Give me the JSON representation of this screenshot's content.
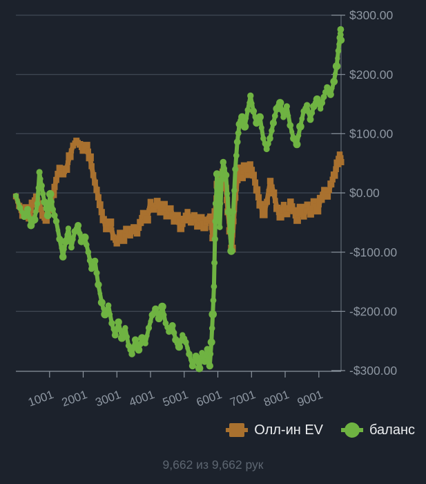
{
  "chart_data": {
    "type": "scatter",
    "title": "",
    "grid": true,
    "legend_position": "bottom",
    "x_axis": {
      "range": [
        1,
        9662
      ],
      "ticks": [
        1001,
        2001,
        3001,
        4001,
        5001,
        6001,
        7001,
        8001,
        9001
      ]
    },
    "y_axis": {
      "range": [
        -300,
        300
      ],
      "tick_values": [
        300,
        200,
        100,
        0,
        -100,
        -200,
        -300
      ],
      "tick_labels": [
        "$300.00",
        "$200.00",
        "$100.00",
        "$0.00",
        "-$100.00",
        "-$200.00",
        "-$300.00"
      ],
      "unit": "USD"
    },
    "style": {
      "background": "#1c222c",
      "grid_color": "#49525f",
      "axis_color": "#8d96a0",
      "label_color": "#8e97a2"
    },
    "series": [
      {
        "id": "allin-ev",
        "name": "Олл-ин EV",
        "color": "#a9712f",
        "marker": "square",
        "points": [
          [
            1,
            -6
          ],
          [
            100,
            -22
          ],
          [
            200,
            -38
          ],
          [
            300,
            -25
          ],
          [
            400,
            -42
          ],
          [
            500,
            -18
          ],
          [
            600,
            -6
          ],
          [
            700,
            -18
          ],
          [
            800,
            -38
          ],
          [
            900,
            -46
          ],
          [
            1000,
            -28
          ],
          [
            1100,
            -2
          ],
          [
            1200,
            22
          ],
          [
            1300,
            42
          ],
          [
            1400,
            32
          ],
          [
            1500,
            40
          ],
          [
            1600,
            62
          ],
          [
            1700,
            80
          ],
          [
            1800,
            88
          ],
          [
            1900,
            82
          ],
          [
            2000,
            72
          ],
          [
            2100,
            80
          ],
          [
            2200,
            60
          ],
          [
            2300,
            30
          ],
          [
            2400,
            5
          ],
          [
            2500,
            -20
          ],
          [
            2600,
            -45
          ],
          [
            2700,
            -60
          ],
          [
            2800,
            -50
          ],
          [
            2900,
            -75
          ],
          [
            3000,
            -85
          ],
          [
            3100,
            -68
          ],
          [
            3200,
            -80
          ],
          [
            3300,
            -62
          ],
          [
            3400,
            -72
          ],
          [
            3500,
            -58
          ],
          [
            3600,
            -68
          ],
          [
            3700,
            -50
          ],
          [
            3800,
            -35
          ],
          [
            3900,
            -45
          ],
          [
            4000,
            -15
          ],
          [
            4100,
            -28
          ],
          [
            4200,
            -14
          ],
          [
            4300,
            -32
          ],
          [
            4400,
            -20
          ],
          [
            4500,
            -38
          ],
          [
            4600,
            -26
          ],
          [
            4700,
            -48
          ],
          [
            4800,
            -38
          ],
          [
            4900,
            -60
          ],
          [
            5000,
            -45
          ],
          [
            5100,
            -32
          ],
          [
            5200,
            -50
          ],
          [
            5300,
            -38
          ],
          [
            5400,
            -56
          ],
          [
            5500,
            -42
          ],
          [
            5600,
            -58
          ],
          [
            5700,
            -45
          ],
          [
            5780,
            -40
          ],
          [
            5850,
            -76
          ],
          [
            5920,
            -32
          ],
          [
            5990,
            14
          ],
          [
            6060,
            28
          ],
          [
            6140,
            36
          ],
          [
            6240,
            8
          ],
          [
            6300,
            -32
          ],
          [
            6360,
            -64
          ],
          [
            6420,
            -94
          ],
          [
            6470,
            -48
          ],
          [
            6520,
            -8
          ],
          [
            6580,
            22
          ],
          [
            6640,
            42
          ],
          [
            6720,
            26
          ],
          [
            6800,
            45
          ],
          [
            6880,
            30
          ],
          [
            6960,
            48
          ],
          [
            7060,
            30
          ],
          [
            7160,
            5
          ],
          [
            7260,
            -20
          ],
          [
            7360,
            -36
          ],
          [
            7460,
            -15
          ],
          [
            7560,
            20
          ],
          [
            7660,
            0
          ],
          [
            7760,
            -26
          ],
          [
            7860,
            -40
          ],
          [
            7960,
            -20
          ],
          [
            8060,
            -36
          ],
          [
            8160,
            -15
          ],
          [
            8260,
            -30
          ],
          [
            8360,
            -46
          ],
          [
            8460,
            -25
          ],
          [
            8560,
            -40
          ],
          [
            8660,
            -20
          ],
          [
            8760,
            -36
          ],
          [
            8860,
            -15
          ],
          [
            8960,
            -30
          ],
          [
            9060,
            -10
          ],
          [
            9160,
            5
          ],
          [
            9260,
            -6
          ],
          [
            9360,
            15
          ],
          [
            9460,
            30
          ],
          [
            9560,
            50
          ],
          [
            9620,
            65
          ],
          [
            9662,
            52
          ]
        ]
      },
      {
        "id": "balance",
        "name": "баланс",
        "color": "#6fb342",
        "marker": "circle",
        "points": [
          [
            1,
            -5
          ],
          [
            120,
            -25
          ],
          [
            250,
            -40
          ],
          [
            350,
            -28
          ],
          [
            450,
            -55
          ],
          [
            550,
            -45
          ],
          [
            640,
            -18
          ],
          [
            700,
            35
          ],
          [
            760,
            12
          ],
          [
            850,
            -15
          ],
          [
            950,
            -38
          ],
          [
            1020,
            -2
          ],
          [
            1100,
            -28
          ],
          [
            1200,
            -48
          ],
          [
            1300,
            -78
          ],
          [
            1400,
            -108
          ],
          [
            1480,
            -82
          ],
          [
            1560,
            -60
          ],
          [
            1650,
            -92
          ],
          [
            1750,
            -65
          ],
          [
            1850,
            -55
          ],
          [
            1950,
            -82
          ],
          [
            2050,
            -75
          ],
          [
            2150,
            -100
          ],
          [
            2250,
            -128
          ],
          [
            2350,
            -115
          ],
          [
            2450,
            -155
          ],
          [
            2550,
            -185
          ],
          [
            2650,
            -205
          ],
          [
            2750,
            -190
          ],
          [
            2850,
            -220
          ],
          [
            2950,
            -240
          ],
          [
            3050,
            -218
          ],
          [
            3150,
            -245
          ],
          [
            3250,
            -228
          ],
          [
            3350,
            -258
          ],
          [
            3450,
            -272
          ],
          [
            3550,
            -248
          ],
          [
            3650,
            -265
          ],
          [
            3750,
            -245
          ],
          [
            3850,
            -254
          ],
          [
            3950,
            -228
          ],
          [
            4050,
            -206
          ],
          [
            4150,
            -196
          ],
          [
            4250,
            -212
          ],
          [
            4350,
            -192
          ],
          [
            4450,
            -220
          ],
          [
            4550,
            -234
          ],
          [
            4650,
            -224
          ],
          [
            4750,
            -248
          ],
          [
            4850,
            -260
          ],
          [
            4950,
            -240
          ],
          [
            5050,
            -252
          ],
          [
            5150,
            -272
          ],
          [
            5250,
            -292
          ],
          [
            5350,
            -276
          ],
          [
            5450,
            -296
          ],
          [
            5530,
            -270
          ],
          [
            5610,
            -285
          ],
          [
            5690,
            -264
          ],
          [
            5760,
            -292
          ],
          [
            5810,
            -252
          ],
          [
            5850,
            -205
          ],
          [
            5885,
            -158
          ],
          [
            5915,
            -78
          ],
          [
            5945,
            -18
          ],
          [
            5975,
            32
          ],
          [
            6015,
            -18
          ],
          [
            6060,
            -58
          ],
          [
            6110,
            22
          ],
          [
            6160,
            52
          ],
          [
            6240,
            30
          ],
          [
            6320,
            -32
          ],
          [
            6400,
            -98
          ],
          [
            6460,
            -32
          ],
          [
            6520,
            40
          ],
          [
            6580,
            86
          ],
          [
            6640,
            116
          ],
          [
            6720,
            128
          ],
          [
            6800,
            112
          ],
          [
            6890,
            140
          ],
          [
            6970,
            164
          ],
          [
            7060,
            138
          ],
          [
            7150,
            118
          ],
          [
            7250,
            128
          ],
          [
            7350,
            92
          ],
          [
            7450,
            74
          ],
          [
            7550,
            92
          ],
          [
            7650,
            118
          ],
          [
            7750,
            142
          ],
          [
            7850,
            152
          ],
          [
            7950,
            128
          ],
          [
            8050,
            146
          ],
          [
            8150,
            114
          ],
          [
            8250,
            92
          ],
          [
            8350,
            82
          ],
          [
            8450,
            112
          ],
          [
            8550,
            138
          ],
          [
            8650,
            148
          ],
          [
            8750,
            124
          ],
          [
            8850,
            146
          ],
          [
            8950,
            158
          ],
          [
            9050,
            142
          ],
          [
            9150,
            162
          ],
          [
            9250,
            178
          ],
          [
            9350,
            166
          ],
          [
            9450,
            188
          ],
          [
            9530,
            214
          ],
          [
            9580,
            240
          ],
          [
            9620,
            262
          ],
          [
            9650,
            276
          ],
          [
            9662,
            258
          ]
        ]
      }
    ]
  },
  "legend": {
    "items": [
      {
        "label": "Олл-ин EV",
        "color": "#a9712f",
        "shape": "square"
      },
      {
        "label": "баланс",
        "color": "#6fb342",
        "shape": "circle"
      }
    ]
  },
  "status": {
    "text": "9,662 из 9,662 рук"
  }
}
